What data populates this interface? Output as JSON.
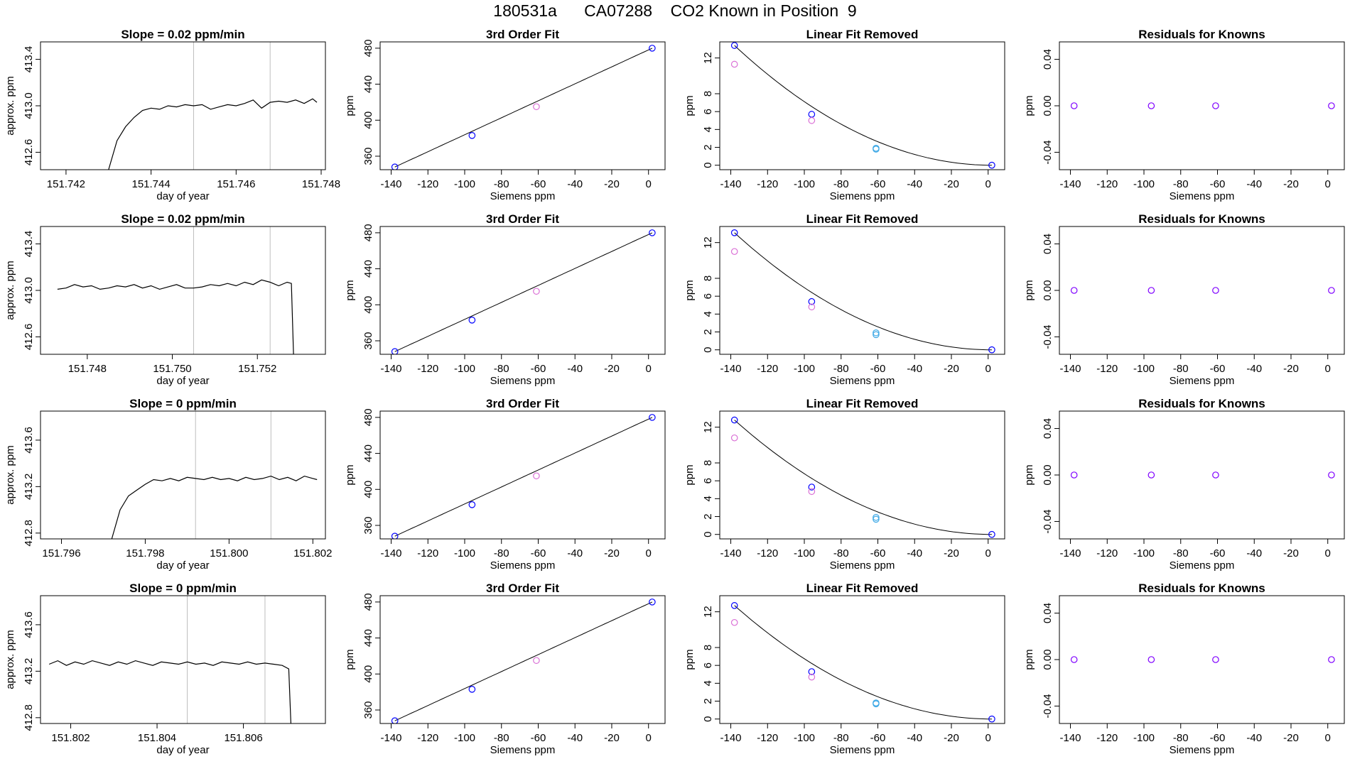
{
  "figure": {
    "title": "180531a      CA07288    CO2 Known in Position  9",
    "colors": {
      "trace": "#000000",
      "window_line": "#bebebe",
      "marker_blue": "#0000ff",
      "marker_magenta": "#da70d6",
      "marker_cyan": "#3fa9e6",
      "marker_purple": "#7f00ff"
    }
  },
  "chart_data": [
    {
      "type": "line",
      "row": 0,
      "panel": "timeseries",
      "title": "Slope =  0.02  ppm/min",
      "xlabel": "day of year",
      "ylabel": "approx. ppm",
      "xlim": [
        151.7414,
        151.7481
      ],
      "ylim": [
        412.45,
        413.55
      ],
      "xticks": [
        151.742,
        151.744,
        151.746,
        151.748
      ],
      "xtick_labels": [
        "151.742",
        "151.744",
        "151.746",
        "151.748"
      ],
      "yticks": [
        412.6,
        413.0,
        413.4
      ],
      "ytick_labels": [
        "412.6",
        "413.0",
        "413.4"
      ],
      "vlines": [
        151.745,
        151.7468
      ],
      "x": [
        151.743,
        151.7432,
        151.7434,
        151.7436,
        151.7438,
        151.744,
        151.7442,
        151.7444,
        151.7446,
        151.7448,
        151.745,
        151.7452,
        151.7454,
        151.7456,
        151.7458,
        151.746,
        151.7462,
        151.7464,
        151.7466,
        151.7468,
        151.747,
        151.7472,
        151.7474,
        151.7476,
        151.7478,
        151.7479
      ],
      "y": [
        412.45,
        412.7,
        412.82,
        412.9,
        412.96,
        412.98,
        412.97,
        413.0,
        412.99,
        413.01,
        413.0,
        413.01,
        412.97,
        412.99,
        413.01,
        413.0,
        413.02,
        413.05,
        412.98,
        413.03,
        413.04,
        413.03,
        413.05,
        413.02,
        413.06,
        413.03
      ]
    },
    {
      "type": "scatter",
      "row": 0,
      "panel": "fit",
      "title": "3rd Order Fit",
      "xlabel": "Siemens ppm",
      "ylabel": "ppm",
      "xlim": [
        -146,
        9
      ],
      "ylim": [
        345,
        487
      ],
      "xticks": [
        -140,
        -120,
        -100,
        -80,
        -60,
        -40,
        -20,
        0
      ],
      "xtick_labels": [
        "-140",
        "-120",
        "-100",
        "-80",
        "-60",
        "-40",
        "-20",
        "0"
      ],
      "yticks": [
        360,
        400,
        440,
        480
      ],
      "ytick_labels": [
        "360",
        "400",
        "440",
        "480"
      ],
      "points_x": [
        -138,
        -96,
        -61,
        2
      ],
      "points_y": [
        348,
        383,
        415,
        480
      ],
      "point_colors": [
        "marker_blue",
        "marker_blue",
        "marker_magenta",
        "marker_blue"
      ]
    },
    {
      "type": "scatter",
      "row": 0,
      "panel": "linear_removed",
      "title": "Linear Fit Removed",
      "xlabel": "Siemens ppm",
      "ylabel": "ppm",
      "xlim": [
        -146,
        9
      ],
      "ylim": [
        -0.5,
        13.8
      ],
      "xticks": [
        -140,
        -120,
        -100,
        -80,
        -60,
        -40,
        -20,
        0
      ],
      "xtick_labels": [
        "-140",
        "-120",
        "-100",
        "-80",
        "-60",
        "-40",
        "-20",
        "0"
      ],
      "yticks": [
        0,
        2,
        4,
        6,
        8,
        12
      ],
      "ytick_labels": [
        "0",
        "2",
        "4",
        "6",
        "8",
        "12"
      ],
      "curve_peak": 13.4,
      "points_x": [
        -138,
        -138,
        -96,
        -96,
        -61,
        -61,
        2
      ],
      "points_y": [
        13.4,
        11.3,
        5.7,
        5.0,
        1.9,
        1.8,
        0.0
      ],
      "point_colors": [
        "marker_blue",
        "marker_magenta",
        "marker_blue",
        "marker_magenta",
        "marker_cyan",
        "marker_cyan",
        "marker_blue"
      ]
    },
    {
      "type": "scatter",
      "row": 0,
      "panel": "residuals",
      "title": "Residuals for Knowns",
      "xlabel": "Siemens ppm",
      "ylabel": "ppm",
      "xlim": [
        -146,
        9
      ],
      "ylim": [
        -0.055,
        0.055
      ],
      "xticks": [
        -140,
        -120,
        -100,
        -80,
        -60,
        -40,
        -20,
        0
      ],
      "xtick_labels": [
        "-140",
        "-120",
        "-100",
        "-80",
        "-60",
        "-40",
        "-20",
        "0"
      ],
      "yticks": [
        -0.04,
        0.0,
        0.04
      ],
      "ytick_labels": [
        "-0.04",
        "0.00",
        "0.04"
      ],
      "points_x": [
        -138,
        -96,
        -61,
        2
      ],
      "points_y": [
        0,
        0,
        0,
        0
      ],
      "point_colors": [
        "marker_purple",
        "marker_purple",
        "marker_purple",
        "marker_purple"
      ]
    },
    {
      "type": "line",
      "row": 1,
      "panel": "timeseries",
      "title": "Slope =  0.02  ppm/min",
      "xlabel": "day of year",
      "ylabel": "approx. ppm",
      "xlim": [
        151.7469,
        151.7536
      ],
      "ylim": [
        412.45,
        413.55
      ],
      "xticks": [
        151.748,
        151.75,
        151.752
      ],
      "xtick_labels": [
        "151.748",
        "151.750",
        "151.752"
      ],
      "yticks": [
        412.6,
        413.0,
        413.4
      ],
      "ytick_labels": [
        "412.6",
        "413.0",
        "413.4"
      ],
      "vlines": [
        151.7505,
        151.7523
      ],
      "x": [
        151.7473,
        151.7475,
        151.7477,
        151.7479,
        151.7481,
        151.7483,
        151.7485,
        151.7487,
        151.7489,
        151.7491,
        151.7493,
        151.7495,
        151.7497,
        151.7499,
        151.7501,
        151.7503,
        151.7505,
        151.7507,
        151.7509,
        151.7511,
        151.7513,
        151.7515,
        151.7517,
        151.7519,
        151.7521,
        151.7523,
        151.7525,
        151.7527,
        151.7528,
        151.75285
      ],
      "y": [
        413.01,
        413.02,
        413.05,
        413.03,
        413.04,
        413.01,
        413.02,
        413.04,
        413.03,
        413.05,
        413.02,
        413.04,
        413.01,
        413.03,
        413.05,
        413.02,
        413.02,
        413.03,
        413.05,
        413.04,
        413.06,
        413.04,
        413.07,
        413.05,
        413.09,
        413.07,
        413.04,
        413.07,
        413.06,
        412.45
      ]
    },
    {
      "type": "scatter",
      "row": 1,
      "panel": "fit",
      "title": "3rd Order Fit",
      "xlabel": "Siemens ppm",
      "ylabel": "ppm",
      "xlim": [
        -146,
        9
      ],
      "ylim": [
        345,
        487
      ],
      "xticks": [
        -140,
        -120,
        -100,
        -80,
        -60,
        -40,
        -20,
        0
      ],
      "xtick_labels": [
        "-140",
        "-120",
        "-100",
        "-80",
        "-60",
        "-40",
        "-20",
        "0"
      ],
      "yticks": [
        360,
        400,
        440,
        480
      ],
      "ytick_labels": [
        "360",
        "400",
        "440",
        "480"
      ],
      "points_x": [
        -138,
        -96,
        -61,
        2
      ],
      "points_y": [
        348,
        383,
        415,
        480
      ],
      "point_colors": [
        "marker_blue",
        "marker_blue",
        "marker_magenta",
        "marker_blue"
      ]
    },
    {
      "type": "scatter",
      "row": 1,
      "panel": "linear_removed",
      "title": "Linear Fit Removed",
      "xlabel": "Siemens ppm",
      "ylabel": "ppm",
      "xlim": [
        -146,
        9
      ],
      "ylim": [
        -0.5,
        13.8
      ],
      "xticks": [
        -140,
        -120,
        -100,
        -80,
        -60,
        -40,
        -20,
        0
      ],
      "xtick_labels": [
        "-140",
        "-120",
        "-100",
        "-80",
        "-60",
        "-40",
        "-20",
        "0"
      ],
      "yticks": [
        0,
        2,
        4,
        6,
        8,
        12
      ],
      "ytick_labels": [
        "0",
        "2",
        "4",
        "6",
        "8",
        "12"
      ],
      "curve_peak": 13.1,
      "points_x": [
        -138,
        -138,
        -96,
        -96,
        -61,
        -61,
        2
      ],
      "points_y": [
        13.1,
        11.0,
        5.4,
        4.8,
        1.9,
        1.7,
        0.0
      ],
      "point_colors": [
        "marker_blue",
        "marker_magenta",
        "marker_blue",
        "marker_magenta",
        "marker_cyan",
        "marker_cyan",
        "marker_blue"
      ]
    },
    {
      "type": "scatter",
      "row": 1,
      "panel": "residuals",
      "title": "Residuals for Knowns",
      "xlabel": "Siemens ppm",
      "ylabel": "ppm",
      "xlim": [
        -146,
        9
      ],
      "ylim": [
        -0.055,
        0.055
      ],
      "xticks": [
        -140,
        -120,
        -100,
        -80,
        -60,
        -40,
        -20,
        0
      ],
      "xtick_labels": [
        "-140",
        "-120",
        "-100",
        "-80",
        "-60",
        "-40",
        "-20",
        "0"
      ],
      "yticks": [
        -0.04,
        0.0,
        0.04
      ],
      "ytick_labels": [
        "-0.04",
        "0.00",
        "0.04"
      ],
      "points_x": [
        -138,
        -96,
        -61,
        2
      ],
      "points_y": [
        0,
        0,
        0,
        0
      ],
      "point_colors": [
        "marker_purple",
        "marker_purple",
        "marker_purple",
        "marker_purple"
      ]
    },
    {
      "type": "line",
      "row": 2,
      "panel": "timeseries",
      "title": "Slope =  0  ppm/min",
      "xlabel": "day of year",
      "ylabel": "approx. ppm",
      "xlim": [
        151.7955,
        151.8023
      ],
      "ylim": [
        412.75,
        413.85
      ],
      "xticks": [
        151.796,
        151.798,
        151.8,
        151.802
      ],
      "xtick_labels": [
        "151.796",
        "151.798",
        "151.800",
        "151.802"
      ],
      "yticks": [
        412.8,
        413.2,
        413.6
      ],
      "ytick_labels": [
        "412.8",
        "413.2",
        "413.6"
      ],
      "vlines": [
        151.7992,
        151.801
      ],
      "x": [
        151.7972,
        151.7974,
        151.7976,
        151.7978,
        151.798,
        151.7982,
        151.7984,
        151.7986,
        151.7988,
        151.799,
        151.7992,
        151.7994,
        151.7996,
        151.7998,
        151.8,
        151.8002,
        151.8004,
        151.8006,
        151.8008,
        151.801,
        151.8012,
        151.8014,
        151.8016,
        151.8018,
        151.802,
        151.8021
      ],
      "y": [
        412.75,
        413.0,
        413.12,
        413.17,
        413.22,
        413.26,
        413.25,
        413.27,
        413.25,
        413.28,
        413.27,
        413.26,
        413.28,
        413.26,
        413.27,
        413.25,
        413.28,
        413.26,
        413.27,
        413.29,
        413.26,
        413.28,
        413.25,
        413.29,
        413.27,
        413.26
      ]
    },
    {
      "type": "scatter",
      "row": 2,
      "panel": "fit",
      "title": "3rd Order Fit",
      "xlabel": "Siemens ppm",
      "ylabel": "ppm",
      "xlim": [
        -146,
        9
      ],
      "ylim": [
        345,
        487
      ],
      "xticks": [
        -140,
        -120,
        -100,
        -80,
        -60,
        -40,
        -20,
        0
      ],
      "xtick_labels": [
        "-140",
        "-120",
        "-100",
        "-80",
        "-60",
        "-40",
        "-20",
        "0"
      ],
      "yticks": [
        360,
        400,
        440,
        480
      ],
      "ytick_labels": [
        "360",
        "400",
        "440",
        "480"
      ],
      "points_x": [
        -138,
        -96,
        -61,
        2
      ],
      "points_y": [
        348,
        383,
        415,
        480
      ],
      "point_colors": [
        "marker_blue",
        "marker_blue",
        "marker_magenta",
        "marker_blue"
      ]
    },
    {
      "type": "scatter",
      "row": 2,
      "panel": "linear_removed",
      "title": "Linear Fit Removed",
      "xlabel": "Siemens ppm",
      "ylabel": "ppm",
      "xlim": [
        -146,
        9
      ],
      "ylim": [
        -0.5,
        13.8
      ],
      "xticks": [
        -140,
        -120,
        -100,
        -80,
        -60,
        -40,
        -20,
        0
      ],
      "xtick_labels": [
        "-140",
        "-120",
        "-100",
        "-80",
        "-60",
        "-40",
        "-20",
        "0"
      ],
      "yticks": [
        0,
        2,
        4,
        6,
        8,
        12
      ],
      "ytick_labels": [
        "0",
        "2",
        "4",
        "6",
        "8",
        "12"
      ],
      "curve_peak": 12.8,
      "points_x": [
        -138,
        -138,
        -96,
        -96,
        -61,
        -61,
        2
      ],
      "points_y": [
        12.8,
        10.8,
        5.3,
        4.8,
        1.9,
        1.7,
        0.0
      ],
      "point_colors": [
        "marker_blue",
        "marker_magenta",
        "marker_blue",
        "marker_magenta",
        "marker_cyan",
        "marker_cyan",
        "marker_blue"
      ]
    },
    {
      "type": "scatter",
      "row": 2,
      "panel": "residuals",
      "title": "Residuals for Knowns",
      "xlabel": "Siemens ppm",
      "ylabel": "ppm",
      "xlim": [
        -146,
        9
      ],
      "ylim": [
        -0.055,
        0.055
      ],
      "xticks": [
        -140,
        -120,
        -100,
        -80,
        -60,
        -40,
        -20,
        0
      ],
      "xtick_labels": [
        "-140",
        "-120",
        "-100",
        "-80",
        "-60",
        "-40",
        "-20",
        "0"
      ],
      "yticks": [
        -0.04,
        0.0,
        0.04
      ],
      "ytick_labels": [
        "-0.04",
        "0.00",
        "0.04"
      ],
      "points_x": [
        -138,
        -96,
        -61,
        2
      ],
      "points_y": [
        0,
        0,
        0,
        0
      ],
      "point_colors": [
        "marker_purple",
        "marker_purple",
        "marker_purple",
        "marker_purple"
      ]
    },
    {
      "type": "line",
      "row": 3,
      "panel": "timeseries",
      "title": "Slope =  0  ppm/min",
      "xlabel": "day of year",
      "ylabel": "approx. ppm",
      "xlim": [
        151.8013,
        151.8079
      ],
      "ylim": [
        412.75,
        413.85
      ],
      "xticks": [
        151.802,
        151.804,
        151.806
      ],
      "xtick_labels": [
        "151.802",
        "151.804",
        "151.806"
      ],
      "yticks": [
        412.8,
        413.2,
        413.6
      ],
      "ytick_labels": [
        "412.8",
        "413.2",
        "413.6"
      ],
      "vlines": [
        151.8047,
        151.8065
      ],
      "x": [
        151.8015,
        151.8017,
        151.8019,
        151.8021,
        151.8023,
        151.8025,
        151.8027,
        151.8029,
        151.8031,
        151.8033,
        151.8035,
        151.8037,
        151.8039,
        151.8041,
        151.8043,
        151.8045,
        151.8047,
        151.8049,
        151.8051,
        151.8053,
        151.8055,
        151.8057,
        151.8059,
        151.8061,
        151.8063,
        151.8065,
        151.8067,
        151.8069,
        151.80705,
        151.8071
      ],
      "y": [
        413.26,
        413.29,
        413.25,
        413.28,
        413.26,
        413.29,
        413.27,
        413.25,
        413.28,
        413.26,
        413.29,
        413.27,
        413.25,
        413.28,
        413.27,
        413.26,
        413.28,
        413.26,
        413.27,
        413.25,
        413.28,
        413.27,
        413.26,
        413.28,
        413.26,
        413.27,
        413.26,
        413.25,
        413.22,
        412.75
      ]
    },
    {
      "type": "scatter",
      "row": 3,
      "panel": "fit",
      "title": "3rd Order Fit",
      "xlabel": "Siemens ppm",
      "ylabel": "ppm",
      "xlim": [
        -146,
        9
      ],
      "ylim": [
        345,
        487
      ],
      "xticks": [
        -140,
        -120,
        -100,
        -80,
        -60,
        -40,
        -20,
        0
      ],
      "xtick_labels": [
        "-140",
        "-120",
        "-100",
        "-80",
        "-60",
        "-40",
        "-20",
        "0"
      ],
      "yticks": [
        360,
        400,
        440,
        480
      ],
      "ytick_labels": [
        "360",
        "400",
        "440",
        "480"
      ],
      "points_x": [
        -138,
        -96,
        -61,
        2
      ],
      "points_y": [
        348,
        383,
        415,
        480
      ],
      "point_colors": [
        "marker_blue",
        "marker_blue",
        "marker_magenta",
        "marker_blue"
      ]
    },
    {
      "type": "scatter",
      "row": 3,
      "panel": "linear_removed",
      "title": "Linear Fit Removed",
      "xlabel": "Siemens ppm",
      "ylabel": "ppm",
      "xlim": [
        -146,
        9
      ],
      "ylim": [
        -0.5,
        13.8
      ],
      "xticks": [
        -140,
        -120,
        -100,
        -80,
        -60,
        -40,
        -20,
        0
      ],
      "xtick_labels": [
        "-140",
        "-120",
        "-100",
        "-80",
        "-60",
        "-40",
        "-20",
        "0"
      ],
      "yticks": [
        0,
        2,
        4,
        6,
        8,
        12
      ],
      "ytick_labels": [
        "0",
        "2",
        "4",
        "6",
        "8",
        "12"
      ],
      "curve_peak": 12.7,
      "points_x": [
        -138,
        -138,
        -96,
        -96,
        -61,
        -61,
        2
      ],
      "points_y": [
        12.7,
        10.8,
        5.3,
        4.7,
        1.8,
        1.7,
        0.0
      ],
      "point_colors": [
        "marker_blue",
        "marker_magenta",
        "marker_blue",
        "marker_magenta",
        "marker_cyan",
        "marker_cyan",
        "marker_blue"
      ]
    },
    {
      "type": "scatter",
      "row": 3,
      "panel": "residuals",
      "title": "Residuals for Knowns",
      "xlabel": "Siemens ppm",
      "ylabel": "ppm",
      "xlim": [
        -146,
        9
      ],
      "ylim": [
        -0.055,
        0.055
      ],
      "xticks": [
        -140,
        -120,
        -100,
        -80,
        -60,
        -40,
        -20,
        0
      ],
      "xtick_labels": [
        "-140",
        "-120",
        "-100",
        "-80",
        "-60",
        "-40",
        "-20",
        "0"
      ],
      "yticks": [
        -0.04,
        0.0,
        0.04
      ],
      "ytick_labels": [
        "-0.04",
        "0.00",
        "0.04"
      ],
      "points_x": [
        -138,
        -96,
        -61,
        2
      ],
      "points_y": [
        0,
        0,
        0,
        0
      ],
      "point_colors": [
        "marker_purple",
        "marker_purple",
        "marker_purple",
        "marker_purple"
      ]
    }
  ]
}
